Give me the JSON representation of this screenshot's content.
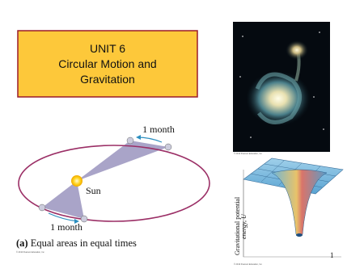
{
  "title": {
    "lines": [
      "UNIT 6",
      "Circular Motion and",
      "Gravitation"
    ]
  },
  "orbit_diagram": {
    "label_top": "1 month",
    "label_sun": "Sun",
    "label_bottom": "1 month",
    "caption_tag": "(a)",
    "caption": "Equal areas in equal times",
    "credit": "© 2010 Pearson Education, Inc."
  },
  "galaxy_image": {
    "credit": "© 2010 Pearson Education, Inc."
  },
  "potential_diagram": {
    "axis_label_line1": "Gravitational potential",
    "axis_label_line2": "energy, U",
    "marker": "1",
    "credit": "© 2010 Pearson Education, Inc."
  }
}
